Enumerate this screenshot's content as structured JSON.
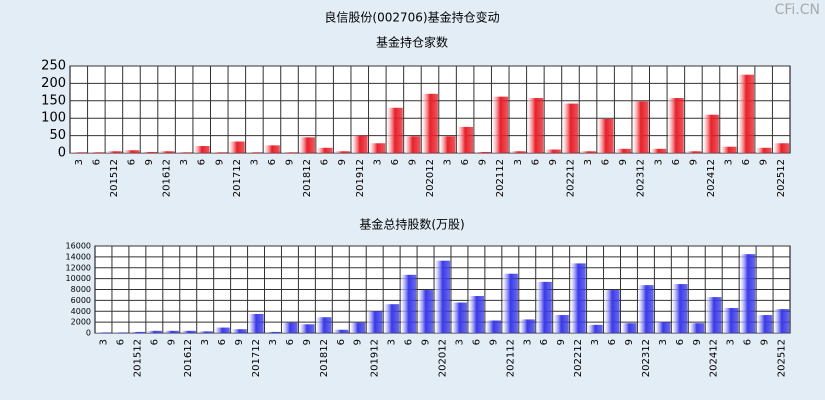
{
  "title": "良信股份(002706)基金持仓变动",
  "watermark": "CFi.CN",
  "chart_data": [
    {
      "type": "bar",
      "title": "基金持仓家数",
      "color": "#e8202a",
      "categories": [
        "3",
        "6",
        "201512",
        "6",
        "9",
        "201612",
        "3",
        "6",
        "9",
        "201712",
        "3",
        "6",
        "9",
        "201812",
        "6",
        "9",
        "201912",
        "3",
        "6",
        "9",
        "202012",
        "3",
        "6",
        "9",
        "202112",
        "3",
        "6",
        "9",
        "202212",
        "3",
        "6",
        "9",
        "202312",
        "3",
        "6",
        "9",
        "202412",
        "3",
        "6",
        "9",
        "202512"
      ],
      "values": [
        2,
        2,
        5,
        8,
        3,
        5,
        2,
        20,
        2,
        33,
        2,
        22,
        2,
        45,
        15,
        5,
        50,
        28,
        130,
        48,
        170,
        48,
        75,
        3,
        162,
        5,
        158,
        10,
        142,
        5,
        98,
        12,
        148,
        12,
        158,
        5,
        110,
        18,
        225,
        15,
        28
      ],
      "ylim": [
        0,
        250
      ],
      "yticks": [
        0,
        50,
        100,
        150,
        200,
        250
      ],
      "grid": true
    },
    {
      "type": "bar",
      "title": "基金总持股数(万股)",
      "color": "#3a3ae8",
      "categories": [
        "3",
        "6",
        "201512",
        "6",
        "9",
        "201612",
        "3",
        "6",
        "9",
        "201712",
        "3",
        "6",
        "9",
        "201812",
        "6",
        "9",
        "201912",
        "3",
        "6",
        "9",
        "202012",
        "3",
        "6",
        "9",
        "202112",
        "3",
        "6",
        "9",
        "202212",
        "3",
        "6",
        "9",
        "202312",
        "3",
        "6",
        "9",
        "202412",
        "3",
        "6",
        "9",
        "202512"
      ],
      "values": [
        100,
        100,
        200,
        400,
        400,
        400,
        300,
        1000,
        700,
        3500,
        200,
        1900,
        1600,
        2900,
        600,
        1900,
        4000,
        5300,
        10700,
        7900,
        13300,
        5600,
        6800,
        2300,
        10900,
        2500,
        9400,
        3300,
        12800,
        1500,
        7900,
        1800,
        8800,
        2000,
        9000,
        1800,
        6600,
        4600,
        14500,
        3300,
        4400
      ],
      "ylim": [
        0,
        16000
      ],
      "yticks": [
        0,
        2000,
        4000,
        6000,
        8000,
        10000,
        12000,
        14000,
        16000
      ],
      "grid": true
    }
  ]
}
